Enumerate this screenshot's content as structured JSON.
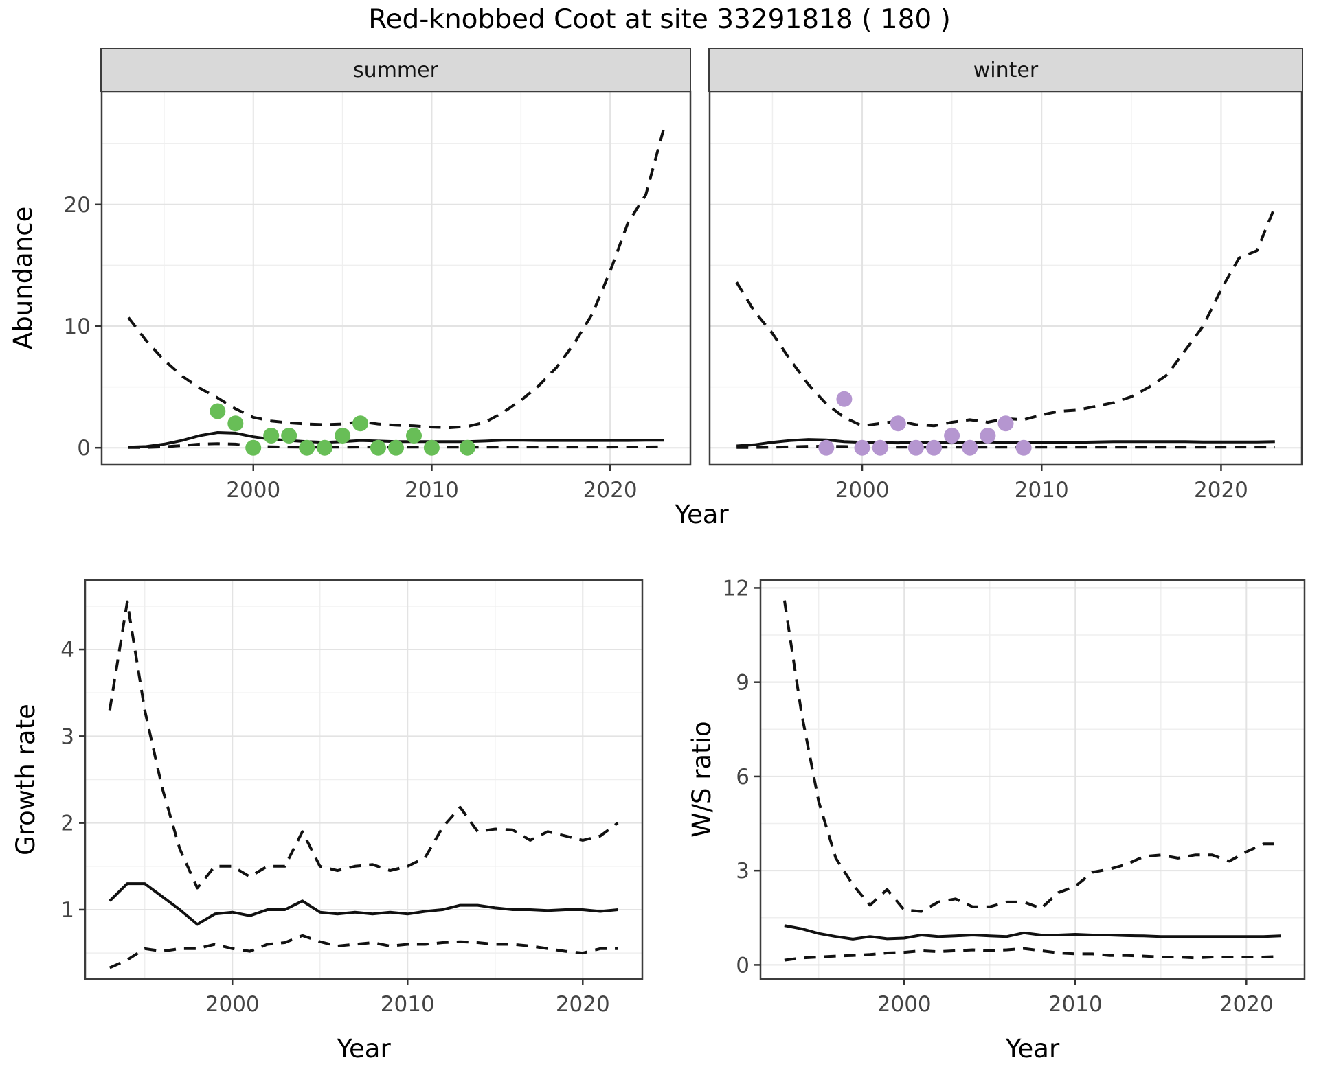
{
  "title": "Red-knobbed Coot at site 33291818 ( 180 )",
  "point_colors": {
    "summer": "#68be57",
    "winter": "#b596d0"
  },
  "line_color": "#111111",
  "chart_data": [
    {
      "type": "line",
      "id": "abundance-summer",
      "facet": "summer",
      "xlabel": "Year",
      "ylabel": "Abundance",
      "xlim": [
        1991.5,
        2024.5
      ],
      "ylim": [
        -1.4,
        29.3
      ],
      "xticks": [
        2000,
        2010,
        2020
      ],
      "xminor": [
        1995,
        2005,
        2015
      ],
      "yticks": [
        0,
        10,
        20
      ],
      "yminor": [
        5,
        15,
        25
      ],
      "show_ylabels": true,
      "x_years": [
        1993,
        1994,
        1995,
        1996,
        1997,
        1998,
        1999,
        2000,
        2001,
        2002,
        2003,
        2004,
        2005,
        2006,
        2007,
        2008,
        2009,
        2010,
        2011,
        2012,
        2013,
        2014,
        2015,
        2016,
        2017,
        2018,
        2019,
        2020,
        2021,
        2022,
        2023
      ],
      "series": [
        {
          "name": "upper-ci",
          "style": "dashed",
          "values": [
            10.7,
            8.8,
            7.2,
            5.9,
            4.9,
            4.1,
            3.2,
            2.5,
            2.2,
            2.05,
            1.95,
            1.9,
            1.95,
            2.15,
            1.95,
            1.85,
            1.8,
            1.7,
            1.65,
            1.75,
            2.1,
            2.9,
            3.9,
            5.1,
            6.6,
            8.6,
            11.0,
            14.5,
            18.5,
            20.8,
            26.2
          ]
        },
        {
          "name": "median",
          "style": "solid",
          "values": [
            0.05,
            0.1,
            0.3,
            0.6,
            1.0,
            1.25,
            1.2,
            0.9,
            0.7,
            0.6,
            0.5,
            0.45,
            0.5,
            0.6,
            0.55,
            0.5,
            0.5,
            0.5,
            0.5,
            0.5,
            0.55,
            0.62,
            0.62,
            0.6,
            0.6,
            0.6,
            0.6,
            0.6,
            0.6,
            0.62,
            0.62
          ]
        },
        {
          "name": "lower-ci",
          "style": "dashed",
          "values": [
            0.02,
            0.03,
            0.08,
            0.18,
            0.3,
            0.33,
            0.3,
            0.12,
            0.08,
            0.06,
            0.05,
            0.05,
            0.05,
            0.06,
            0.05,
            0.05,
            0.05,
            0.05,
            0.05,
            0.05,
            0.05,
            0.06,
            0.06,
            0.06,
            0.06,
            0.06,
            0.06,
            0.06,
            0.07,
            0.07,
            0.08
          ]
        }
      ],
      "points": {
        "name": "summer-observations",
        "color": "#68be57",
        "x": [
          1998,
          1999,
          2000,
          2001,
          2002,
          2003,
          2004,
          2005,
          2006,
          2007,
          2008,
          2009,
          2010,
          2012
        ],
        "y": [
          3,
          2,
          0,
          1,
          1,
          0,
          0,
          1,
          2,
          0,
          0,
          1,
          0,
          0
        ]
      }
    },
    {
      "type": "line",
      "id": "abundance-winter",
      "facet": "winter",
      "xlabel": "Year",
      "ylabel": "Abundance",
      "xlim": [
        1991.5,
        2024.5
      ],
      "ylim": [
        -1.4,
        29.3
      ],
      "xticks": [
        2000,
        2010,
        2020
      ],
      "xminor": [
        1995,
        2005,
        2015
      ],
      "yticks": [
        0,
        10,
        20
      ],
      "yminor": [
        5,
        15,
        25
      ],
      "show_ylabels": false,
      "x_years": [
        1993,
        1994,
        1995,
        1996,
        1997,
        1998,
        1999,
        2000,
        2001,
        2002,
        2003,
        2004,
        2005,
        2006,
        2007,
        2008,
        2009,
        2010,
        2011,
        2012,
        2013,
        2014,
        2015,
        2016,
        2017,
        2018,
        2019,
        2020,
        2021,
        2022,
        2023
      ],
      "series": [
        {
          "name": "upper-ci",
          "style": "dashed",
          "values": [
            13.6,
            11.2,
            9.4,
            7.2,
            5.2,
            3.6,
            2.5,
            1.8,
            2.0,
            2.2,
            1.9,
            1.8,
            2.1,
            2.3,
            2.1,
            2.4,
            2.3,
            2.7,
            3.0,
            3.1,
            3.4,
            3.7,
            4.2,
            5.0,
            6.0,
            8.0,
            10.0,
            13.0,
            15.6,
            16.2,
            19.8
          ]
        },
        {
          "name": "median",
          "style": "solid",
          "values": [
            0.15,
            0.25,
            0.45,
            0.6,
            0.68,
            0.65,
            0.5,
            0.45,
            0.42,
            0.4,
            0.45,
            0.42,
            0.4,
            0.45,
            0.48,
            0.45,
            0.42,
            0.45,
            0.45,
            0.45,
            0.48,
            0.5,
            0.5,
            0.5,
            0.5,
            0.5,
            0.48,
            0.48,
            0.48,
            0.48,
            0.5
          ]
        },
        {
          "name": "lower-ci",
          "style": "dashed",
          "values": [
            0.02,
            0.03,
            0.05,
            0.08,
            0.12,
            0.12,
            0.1,
            0.06,
            0.05,
            0.05,
            0.05,
            0.05,
            0.05,
            0.05,
            0.05,
            0.05,
            0.05,
            0.05,
            0.05,
            0.05,
            0.05,
            0.05,
            0.05,
            0.05,
            0.05,
            0.05,
            0.05,
            0.05,
            0.06,
            0.06,
            0.06
          ]
        }
      ],
      "points": {
        "name": "winter-observations",
        "color": "#b596d0",
        "x": [
          1998,
          1999,
          2000,
          2001,
          2002,
          2003,
          2004,
          2005,
          2006,
          2007,
          2008,
          2009
        ],
        "y": [
          0,
          4,
          0,
          0,
          2,
          0,
          0,
          1,
          0,
          1,
          2,
          0
        ]
      }
    },
    {
      "type": "line",
      "id": "growth-rate",
      "facet": "",
      "xlabel": "Year",
      "ylabel": "Growth rate",
      "xlim": [
        1991.6,
        2023.4
      ],
      "ylim": [
        0.2,
        4.8
      ],
      "xticks": [
        2000,
        2010,
        2020
      ],
      "xminor": [
        1995,
        2005,
        2015
      ],
      "yticks": [
        1,
        2,
        3,
        4
      ],
      "yminor": [
        0.5,
        1.5,
        2.5,
        3.5,
        4.5
      ],
      "show_ylabels": true,
      "x_years": [
        1993,
        1994,
        1995,
        1996,
        1997,
        1998,
        1999,
        2000,
        2001,
        2002,
        2003,
        2004,
        2005,
        2006,
        2007,
        2008,
        2009,
        2010,
        2011,
        2012,
        2013,
        2014,
        2015,
        2016,
        2017,
        2018,
        2019,
        2020,
        2021,
        2022
      ],
      "series": [
        {
          "name": "upper-ci",
          "style": "dashed",
          "values": [
            3.3,
            4.55,
            3.3,
            2.4,
            1.7,
            1.25,
            1.5,
            1.5,
            1.38,
            1.5,
            1.5,
            1.9,
            1.5,
            1.45,
            1.5,
            1.52,
            1.45,
            1.5,
            1.6,
            1.95,
            2.18,
            1.9,
            1.93,
            1.92,
            1.8,
            1.9,
            1.85,
            1.8,
            1.85,
            2.0
          ]
        },
        {
          "name": "median",
          "style": "solid",
          "values": [
            1.1,
            1.3,
            1.3,
            1.15,
            1.0,
            0.83,
            0.95,
            0.97,
            0.93,
            1.0,
            1.0,
            1.1,
            0.97,
            0.95,
            0.97,
            0.95,
            0.97,
            0.95,
            0.98,
            1.0,
            1.05,
            1.05,
            1.02,
            1.0,
            1.0,
            0.99,
            1.0,
            1.0,
            0.98,
            1.0
          ]
        },
        {
          "name": "lower-ci",
          "style": "dashed",
          "values": [
            0.33,
            0.42,
            0.55,
            0.52,
            0.55,
            0.55,
            0.6,
            0.55,
            0.52,
            0.6,
            0.62,
            0.7,
            0.63,
            0.58,
            0.6,
            0.62,
            0.58,
            0.6,
            0.6,
            0.62,
            0.63,
            0.62,
            0.6,
            0.6,
            0.58,
            0.55,
            0.52,
            0.5,
            0.55,
            0.55
          ]
        }
      ]
    },
    {
      "type": "line",
      "id": "ws-ratio",
      "facet": "",
      "xlabel": "Year",
      "ylabel": "W/S ratio",
      "xlim": [
        1991.6,
        2023.4
      ],
      "ylim": [
        -0.45,
        12.25
      ],
      "xticks": [
        2000,
        2010,
        2020
      ],
      "xminor": [
        1995,
        2005,
        2015
      ],
      "yticks": [
        0,
        3,
        6,
        9,
        12
      ],
      "yminor": [
        1.5,
        4.5,
        7.5,
        10.5
      ],
      "show_ylabels": true,
      "x_years": [
        1993,
        1994,
        1995,
        1996,
        1997,
        1998,
        1999,
        2000,
        2001,
        2002,
        2003,
        2004,
        2005,
        2006,
        2007,
        2008,
        2009,
        2010,
        2011,
        2012,
        2013,
        2014,
        2015,
        2016,
        2017,
        2018,
        2019,
        2020,
        2021,
        2022
      ],
      "series": [
        {
          "name": "upper-ci",
          "style": "dashed",
          "values": [
            11.6,
            8.0,
            5.2,
            3.4,
            2.55,
            1.9,
            2.4,
            1.75,
            1.7,
            2.0,
            2.1,
            1.85,
            1.85,
            2.0,
            2.0,
            1.8,
            2.3,
            2.5,
            2.95,
            3.05,
            3.2,
            3.45,
            3.5,
            3.4,
            3.5,
            3.5,
            3.3,
            3.6,
            3.85,
            3.85
          ]
        },
        {
          "name": "median",
          "style": "solid",
          "values": [
            1.25,
            1.15,
            1.0,
            0.9,
            0.82,
            0.9,
            0.83,
            0.85,
            0.95,
            0.9,
            0.92,
            0.95,
            0.92,
            0.9,
            1.02,
            0.95,
            0.95,
            0.97,
            0.95,
            0.95,
            0.93,
            0.92,
            0.9,
            0.9,
            0.9,
            0.9,
            0.9,
            0.9,
            0.9,
            0.92
          ]
        },
        {
          "name": "lower-ci",
          "style": "dashed",
          "values": [
            0.15,
            0.22,
            0.25,
            0.28,
            0.3,
            0.33,
            0.38,
            0.4,
            0.45,
            0.42,
            0.45,
            0.48,
            0.45,
            0.48,
            0.52,
            0.45,
            0.38,
            0.35,
            0.35,
            0.3,
            0.3,
            0.28,
            0.25,
            0.25,
            0.22,
            0.25,
            0.25,
            0.25,
            0.25,
            0.27
          ]
        }
      ]
    }
  ]
}
